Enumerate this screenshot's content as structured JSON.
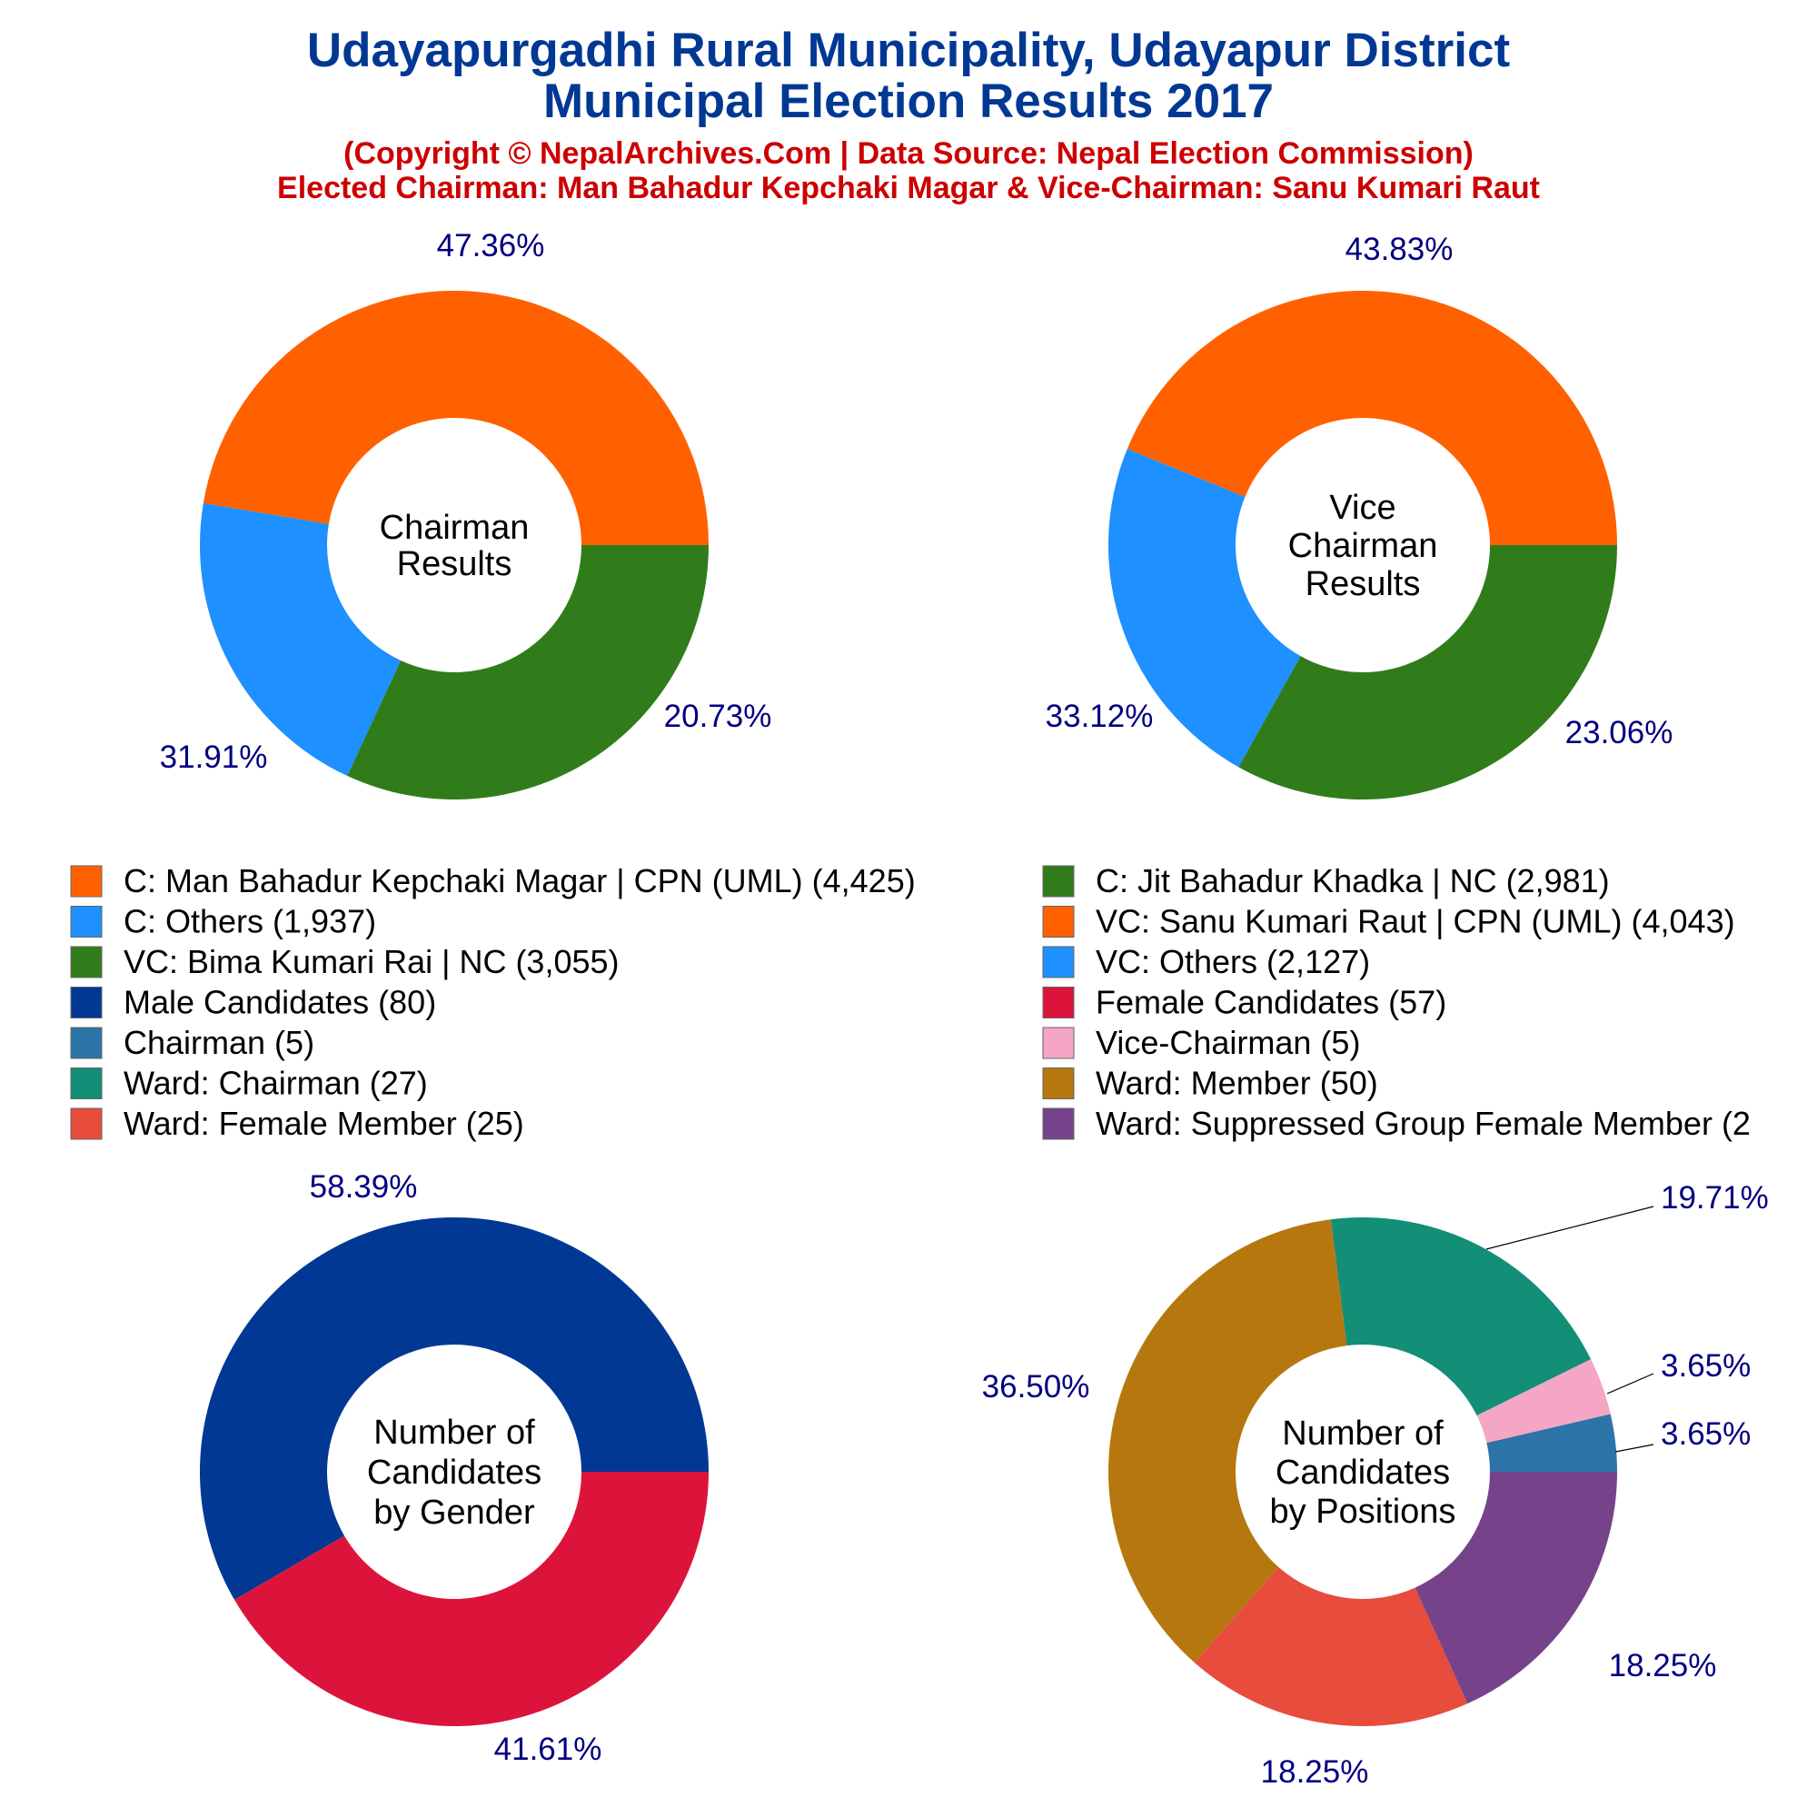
{
  "header": {
    "title_line1": "Udayapurgadhi Rural Municipality, Udayapur District",
    "title_line2": "Municipal Election Results 2017",
    "subtitle_line1": "(Copyright © NepalArchives.Com | Data Source: Nepal Election Commission)",
    "subtitle_line2": "Elected Chairman: Man Bahadur Kepchaki Magar & Vice-Chairman: Sanu Kumari Raut"
  },
  "legend": [
    {
      "label": "C: Man Bahadur Kepchaki Magar | CPN (UML) (4,425)",
      "color": "#ff6100"
    },
    {
      "label": "C: Jit Bahadur Khadka | NC (2,981)",
      "color": "#317c1a"
    },
    {
      "label": "C: Others (1,937)",
      "color": "#1e90ff"
    },
    {
      "label": "VC: Sanu Kumari Raut | CPN (UML) (4,043)",
      "color": "#ff6100"
    },
    {
      "label": "VC: Bima Kumari Rai | NC (3,055)",
      "color": "#317c1a"
    },
    {
      "label": "VC: Others (2,127)",
      "color": "#1e90ff"
    },
    {
      "label": "Male Candidates (80)",
      "color": "#003893"
    },
    {
      "label": "Female Candidates (57)",
      "color": "#dc143c"
    },
    {
      "label": "Chairman (5)",
      "color": "#2c74a8"
    },
    {
      "label": "Vice-Chairman (5)",
      "color": "#f4a6c4"
    },
    {
      "label": "Ward: Chairman (27)",
      "color": "#128f76"
    },
    {
      "label": "Ward: Member (50)",
      "color": "#b7770f"
    },
    {
      "label": "Ward: Female Member (25)",
      "color": "#e74c3c"
    },
    {
      "label": "Ward: Suppressed Group Female Member (2",
      "color": "#76428a"
    }
  ],
  "chart_data": [
    {
      "type": "pie",
      "center_label": [
        "Chairman",
        "Results"
      ],
      "categories": [
        "C: Man Bahadur Kepchaki Magar | CPN (UML)",
        "C: Others",
        "C: Jit Bahadur Khadka | NC"
      ],
      "values": [
        4425,
        1937,
        2981
      ],
      "labels": [
        "47.36%",
        "20.73%",
        "31.91%"
      ],
      "colors": [
        "#ff6100",
        "#1e90ff",
        "#317c1a"
      ]
    },
    {
      "type": "pie",
      "center_label": [
        "Vice",
        "Chairman",
        "Results"
      ],
      "categories": [
        "VC: Sanu Kumari Raut | CPN (UML)",
        "VC: Others",
        "VC: Bima Kumari Rai | NC"
      ],
      "values": [
        4043,
        2127,
        3055
      ],
      "labels": [
        "43.83%",
        "23.06%",
        "33.12%"
      ],
      "colors": [
        "#ff6100",
        "#1e90ff",
        "#317c1a"
      ]
    },
    {
      "type": "pie",
      "center_label": [
        "Number of",
        "Candidates",
        "by Gender"
      ],
      "categories": [
        "Male Candidates",
        "Female Candidates"
      ],
      "values": [
        80,
        57
      ],
      "labels": [
        "58.39%",
        "41.61%"
      ],
      "colors": [
        "#003893",
        "#dc143c"
      ]
    },
    {
      "type": "pie",
      "center_label": [
        "Number of",
        "Candidates",
        "by Positions"
      ],
      "categories": [
        "Chairman",
        "Vice-Chairman",
        "Ward: Chairman",
        "Ward: Member",
        "Ward: Female Member",
        "Ward: Suppressed Group Female Member"
      ],
      "values": [
        5,
        5,
        27,
        50,
        25,
        25
      ],
      "labels": [
        "3.65%",
        "3.65%",
        "19.71%",
        "36.50%",
        "18.25%",
        "18.25%"
      ],
      "colors": [
        "#2c74a8",
        "#f4a6c4",
        "#128f76",
        "#b7770f",
        "#e74c3c",
        "#76428a"
      ]
    }
  ]
}
